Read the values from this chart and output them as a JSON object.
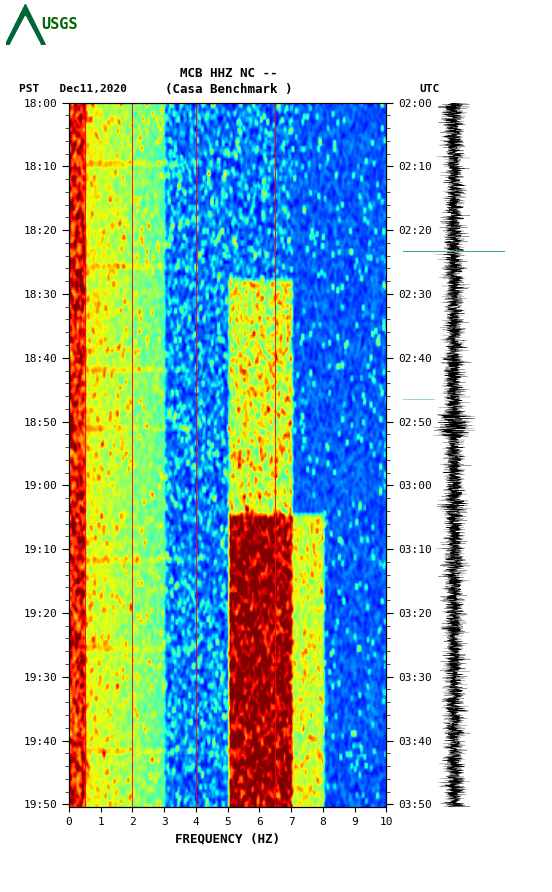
{
  "title_line1": "MCB HHZ NC --",
  "title_line2": "(Casa Benchmark )",
  "left_label": "PST   Dec11,2020",
  "right_label": "UTC",
  "freq_min": 0,
  "freq_max": 10,
  "pst_ticks": [
    "18:00",
    "18:10",
    "18:20",
    "18:30",
    "18:40",
    "18:50",
    "19:00",
    "19:10",
    "19:20",
    "19:30",
    "19:40",
    "19:50"
  ],
  "utc_ticks": [
    "02:00",
    "02:10",
    "02:20",
    "02:30",
    "02:40",
    "02:50",
    "03:00",
    "03:10",
    "03:20",
    "03:30",
    "03:40",
    "03:50"
  ],
  "freq_ticks": [
    0,
    1,
    2,
    3,
    4,
    5,
    6,
    7,
    8,
    9,
    10
  ],
  "freq_label": "FREQUENCY (HZ)",
  "bg_color": "#ffffff",
  "spectrogram_cmap": "jet",
  "red_line_freqs": [
    0.5,
    2.0,
    4.0,
    6.5
  ],
  "figure_width": 5.52,
  "figure_height": 8.92,
  "usgs_color": "#006400",
  "marker_line_color": "#44aa88"
}
